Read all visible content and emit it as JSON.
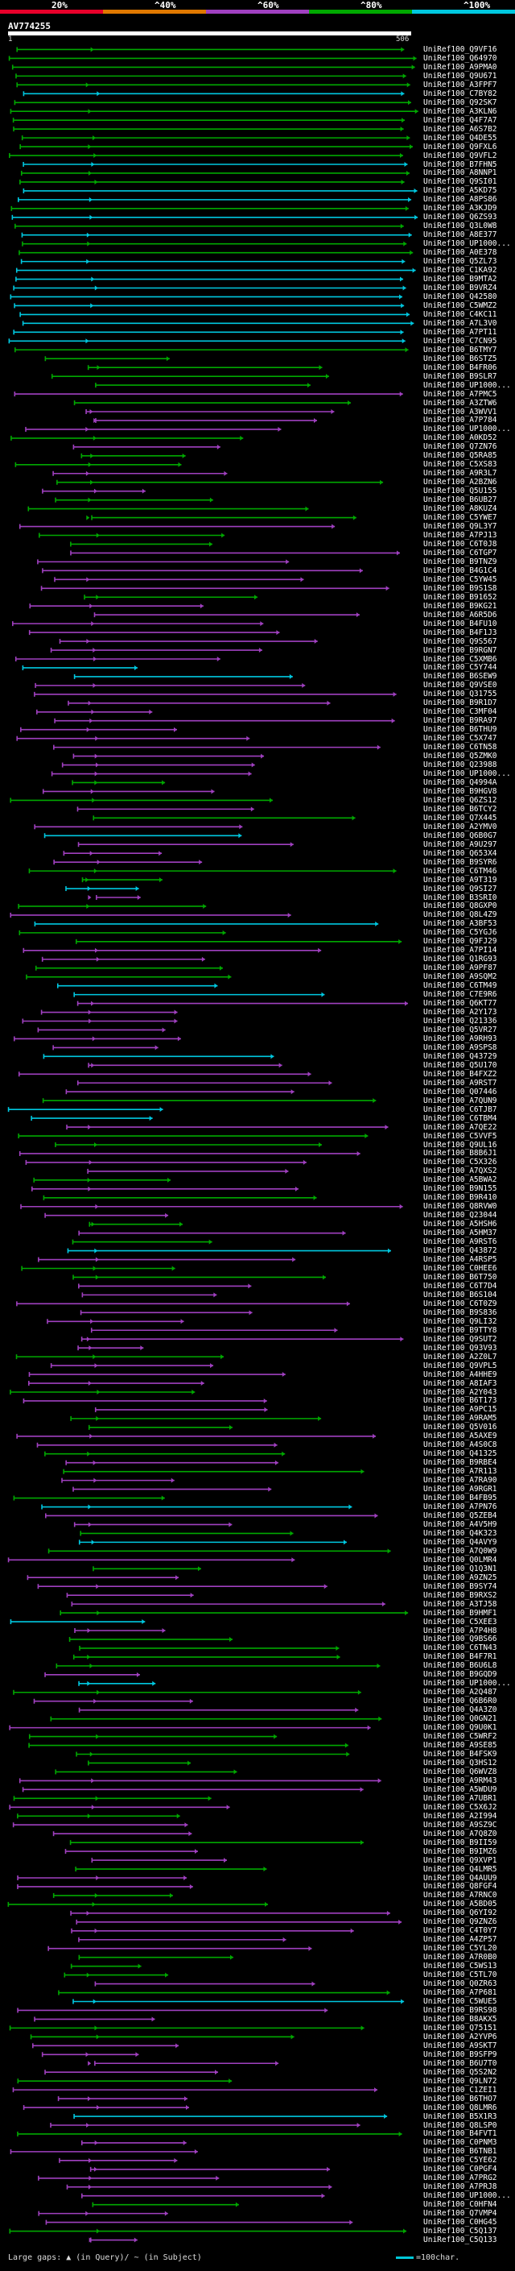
{
  "legend": {
    "labels": [
      "20%",
      "^40%",
      "^60%",
      "^80%",
      "^100%"
    ],
    "colors": [
      "#e8002a",
      "#e07800",
      "#a040c0",
      "#00a800",
      "#00c8e0"
    ]
  },
  "query": {
    "name": "AV774255",
    "start": "1",
    "end": "506"
  },
  "footer": {
    "gaps_text": "Large gaps: ▲ (in Query)/ ~ (in Subject)",
    "scale_text": "=100char."
  },
  "hits": [
    "UniRef100_Q9VF16",
    "UniRef100_Q64970",
    "UniRef100_A9PMA0",
    "UniRef100_Q9U671",
    "UniRef100_A3FPF7",
    "UniRef100_C7BY82",
    "UniRef100_Q92SK7",
    "UniRef100_A3KLN6",
    "UniRef100_Q4F7A7",
    "UniRef100_A6S7B2",
    "UniRef100_Q4DE55",
    "UniRef100_Q9FXL6",
    "UniRef100_Q9VFL2",
    "UniRef100_B7FHN5",
    "UniRef100_A8NNP1",
    "UniRef100_Q9SI01",
    "UniRef100_A5KD75",
    "UniRef100_A8PS86",
    "UniRef100_A3KJD9",
    "UniRef100_Q6ZS93",
    "UniRef100_Q3L0W8",
    "UniRef100_A8E377",
    "UniRef100_UP1000...",
    "UniRef100_A0E378",
    "UniRef100_Q5ZL73",
    "UniRef100_C1KA92",
    "UniRef100_B9MTA2",
    "UniRef100_B9VRZ4",
    "UniRef100_Q42580",
    "UniRef100_C5WMZ2",
    "UniRef100_C4KC11",
    "UniRef100_A7L3V0",
    "UniRef100_A7PT11",
    "UniRef100_C7CN95",
    "UniRef100_B6TMY7",
    "UniRef100_B6STZ5",
    "UniRef100_B4FR06",
    "UniRef100_B9SLR7",
    "UniRef100_UP1000...",
    "UniRef100_A7PMC5",
    "UniRef100_A3ZTW6",
    "UniRef100_A3WVV1",
    "UniRef100_A7P784",
    "UniRef100_UP1000...",
    "UniRef100_A0KD52",
    "UniRef100_Q7ZN76",
    "UniRef100_Q5RA85",
    "UniRef100_C5XS83",
    "UniRef100_A9R3L7",
    "UniRef100_A2BZN6",
    "UniRef100_Q5U155",
    "UniRef100_B6UB27",
    "UniRef100_A8KUZ4",
    "UniRef100_C5YWE7",
    "UniRef100_Q9L3Y7",
    "UniRef100_A7PJ13",
    "UniRef100_C6T0J8",
    "UniRef100_C6TGP7",
    "UniRef100_B9TNZ9",
    "UniRef100_B4G1C4",
    "UniRef100_C5YW45",
    "UniRef100_B9S1S8",
    "UniRef100_B91652",
    "UniRef100_B9KG21",
    "UniRef100_A6R5D6",
    "UniRef100_B4FU10",
    "UniRef100_B4F1J3",
    "UniRef100_Q9S567",
    "UniRef100_B9RGN7",
    "UniRef100_C5XMB6",
    "UniRef100_C5Y744",
    "UniRef100_B6SEW9",
    "UniRef100_Q9VSE0",
    "UniRef100_Q31755",
    "UniRef100_B9R1D7",
    "UniRef100_C3MF04",
    "UniRef100_B9RA97",
    "UniRef100_B6THU9",
    "UniRef100_C5X747",
    "UniRef100_C6TN58",
    "UniRef100_Q5ZMK0",
    "UniRef100_Q23988",
    "UniRef100_UP1000...",
    "UniRef100_Q4994A",
    "UniRef100_B9HGV8",
    "UniRef100_Q6ZS12",
    "UniRef100_B6TCY2",
    "UniRef100_Q7X445",
    "UniRef100_A2YMV0",
    "UniRef100_Q6B0G7",
    "UniRef100_A9U297",
    "UniRef100_Q653X4",
    "UniRef100_B9SYR6",
    "UniRef100_C6TM46",
    "UniRef100_A9T319",
    "UniRef100_Q9SI27",
    "UniRef100_B3SRI0",
    "UniRef100_Q8GXP0",
    "UniRef100_Q8L4Z9",
    "UniRef100_A3BF53",
    "UniRef100_C5YGJ6",
    "UniRef100_Q9FJ29",
    "UniRef100_A7PI14",
    "UniRef100_Q1RG93",
    "UniRef100_A9PF87",
    "UniRef100_A9SQM2",
    "UniRef100_C6TM49",
    "UniRef100_C7E9R6",
    "UniRef100_Q6KT77",
    "UniRef100_A2Y173",
    "UniRef100_Q21336",
    "UniRef100_Q5VR27",
    "UniRef100_A9RH93",
    "UniRef100_A9SPS8",
    "UniRef100_Q43729",
    "UniRef100_Q5U170",
    "UniRef100_B4FXZ2",
    "UniRef100_A9RST7",
    "UniRef100_Q07446",
    "UniRef100_A7QUN9",
    "UniRef100_C6TJB7",
    "UniRef100_C6TBM4",
    "UniRef100_A7QE22",
    "UniRef100_C5VVF5",
    "UniRef100_Q9UL16",
    "UniRef100_B8B6J1",
    "UniRef100_C5X326",
    "UniRef100_A7QXS2",
    "UniRef100_A5BWA2",
    "UniRef100_B9N155",
    "UniRef100_B9R410",
    "UniRef100_Q8RVW0",
    "UniRef100_Q23044",
    "UniRef100_A5HSH6",
    "UniRef100_A5HM37",
    "UniRef100_A9RST6",
    "UniRef100_Q43872",
    "UniRef100_A4RSP5",
    "UniRef100_C0HEE6",
    "UniRef100_B6T750",
    "UniRef100_C6T7D4",
    "UniRef100_B6S104",
    "UniRef100_C6T0Z9",
    "UniRef100_B9S836",
    "UniRef100_Q9LI32",
    "UniRef100_B9TTY8",
    "UniRef100_Q9SUT2",
    "UniRef100_Q93V93",
    "UniRef100_A2Z0L7",
    "UniRef100_Q9VPL5",
    "UniRef100_A4HHE9",
    "UniRef100_A8IAF3",
    "UniRef100_A2Y043",
    "UniRef100_B6T173",
    "UniRef100_A9PC15",
    "UniRef100_A9RAM5",
    "UniRef100_Q5V016",
    "UniRef100_A5AXE9",
    "UniRef100_A4S0C8",
    "UniRef100_Q41325",
    "UniRef100_B9RBE4",
    "UniRef100_A7R113",
    "UniRef100_A7RA90",
    "UniRef100_A9RGR1",
    "UniRef100_B4FB95",
    "UniRef100_A7PN76",
    "UniRef100_Q5ZEB4",
    "UniRef100_A4V5H9",
    "UniRef100_Q4K323",
    "UniRef100_Q4AVY9",
    "UniRef100_A7Q0W9",
    "UniRef100_Q0LMR4",
    "UniRef100_Q1Q3N1",
    "UniRef100_A9ZN25",
    "UniRef100_B9SY74",
    "UniRef100_B9RXS2",
    "UniRef100_A3TJ58",
    "UniRef100_B9HMF1",
    "UniRef100_C5XEE3",
    "UniRef100_A7P4H8",
    "UniRef100_Q9BS66",
    "UniRef100_C6TN43",
    "UniRef100_B4F7R1",
    "UniRef100_B6U6L8",
    "UniRef100_B9GQD9",
    "UniRef100_UP1000...",
    "UniRef100_A2Q487",
    "UniRef100_Q6B6R0",
    "UniRef100_Q4A3Z0",
    "UniRef100_Q0GN21",
    "UniRef100_Q9U0K1",
    "UniRef100_C5WRF2",
    "UniRef100_A9SE85",
    "UniRef100_B4FSK9",
    "UniRef100_Q3HS12",
    "UniRef100_Q6WVZ8",
    "UniRef100_A9RM43",
    "UniRef100_A5WDU9",
    "UniRef100_A7UBR1",
    "UniRef100_C5X6J2",
    "UniRef100_A2I994",
    "UniRef100_A9SZ9C",
    "UniRef100_A7Q8Z0",
    "UniRef100_B9II59",
    "UniRef100_B9IMZ6",
    "UniRef100_Q9XVP1",
    "UniRef100_Q4LMR5",
    "UniRef100_Q4AUU9",
    "UniRef100_Q8FGF4",
    "UniRef100_A7RNC0",
    "UniRef100_A5BD05",
    "UniRef100_Q6YI92",
    "UniRef100_Q9ZNZ6",
    "UniRef100_C4T0Y7",
    "UniRef100_A4ZP57",
    "UniRef100_C5YL20",
    "UniRef100_A7R0B0",
    "UniRef100_C5WS13",
    "UniRef100_C5TL70",
    "UniRef100_Q0ZR63",
    "UniRef100_A7P681",
    "UniRef100_C5WUE5",
    "UniRef100_B9RS98",
    "UniRef100_B8AKX5",
    "UniRef100_Q75151",
    "UniRef100_A2YVP6",
    "UniRef100_A9SKT7",
    "UniRef100_B9SFP9",
    "UniRef100_B6U7T0",
    "UniRef100_Q5S2N2",
    "UniRef100_Q9LN72",
    "UniRef100_C1ZEI1",
    "UniRef100_B6THO7",
    "UniRef100_Q8LMR6",
    "UniRef100_B5X1R3",
    "UniRef100_Q8LSP0",
    "UniRef100_B4FVT1",
    "UniRef100_C0PNM3",
    "UniRef100_B6TNB1",
    "UniRef100_C5YE62",
    "UniRef100_C0PGF4",
    "UniRef100_A7PRG2",
    "UniRef100_A7PRJ8",
    "UniRef100_UP1000...",
    "UniRef100_C0HFN4",
    "UniRef100_Q7VMP4",
    "UniRef100_C0HG45",
    "UniRef100_C5Q137",
    "UniRef100_C5Q133"
  ]
}
